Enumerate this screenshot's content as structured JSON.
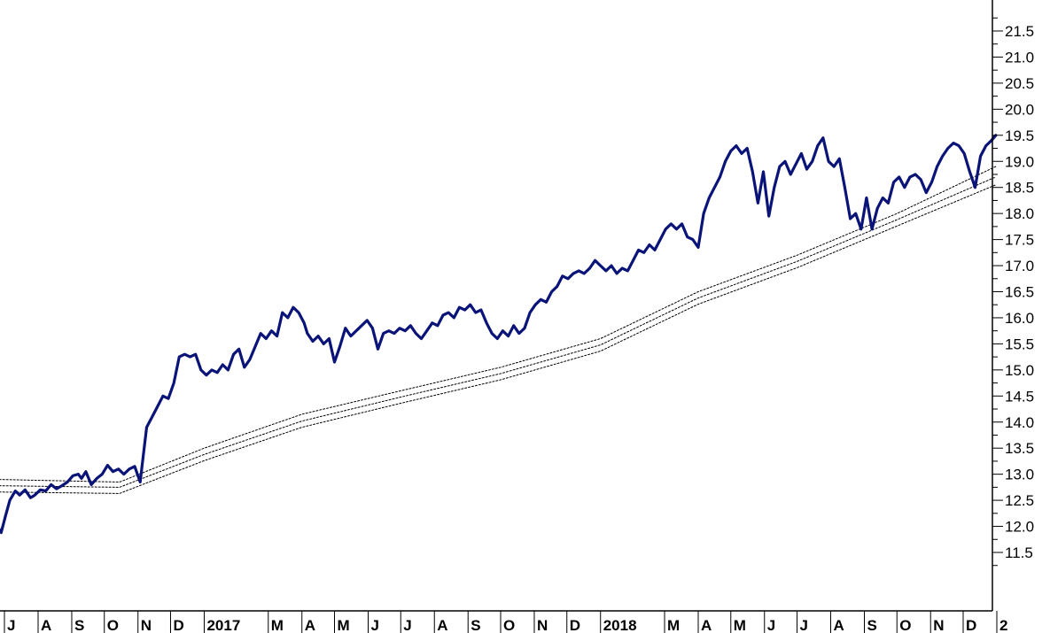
{
  "chart_data": {
    "type": "line",
    "title": "",
    "xlabel": "",
    "ylabel": "",
    "x_range": [
      "2016-07-01",
      "2018-12-31"
    ],
    "ylim": [
      11,
      22
    ],
    "y_ticks": [
      11.5,
      12.0,
      12.5,
      13.0,
      13.5,
      14.0,
      14.5,
      15.0,
      15.5,
      16.0,
      16.5,
      17.0,
      17.5,
      18.0,
      18.5,
      19.0,
      19.5,
      20.0,
      20.5,
      21.0,
      21.5
    ],
    "y_tick_labels": [
      "11.5",
      "12.0",
      "12.5",
      "13.0",
      "13.5",
      "14.0",
      "14.5",
      "15.0",
      "15.5",
      "16.0",
      "16.5",
      "17.0",
      "17.5",
      "18.0",
      "18.5",
      "19.0",
      "19.5",
      "20.0",
      "20.5",
      "21.0",
      "21.5"
    ],
    "x_ticks": [
      {
        "date": "2016-07-01",
        "label": "J"
      },
      {
        "date": "2016-08-01",
        "label": "A"
      },
      {
        "date": "2016-09-01",
        "label": "S"
      },
      {
        "date": "2016-10-01",
        "label": "O"
      },
      {
        "date": "2016-11-01",
        "label": "N"
      },
      {
        "date": "2016-12-01",
        "label": "D"
      },
      {
        "date": "2017-01-01",
        "label": "2017"
      },
      {
        "date": "2017-03-01",
        "label": "M"
      },
      {
        "date": "2017-04-01",
        "label": "A"
      },
      {
        "date": "2017-05-01",
        "label": "M"
      },
      {
        "date": "2017-06-01",
        "label": "J"
      },
      {
        "date": "2017-07-01",
        "label": "J"
      },
      {
        "date": "2017-08-01",
        "label": "A"
      },
      {
        "date": "2017-09-01",
        "label": "S"
      },
      {
        "date": "2017-10-01",
        "label": "O"
      },
      {
        "date": "2017-11-01",
        "label": "N"
      },
      {
        "date": "2017-12-01",
        "label": "D"
      },
      {
        "date": "2018-01-01",
        "label": "2018"
      },
      {
        "date": "2018-03-01",
        "label": "M"
      },
      {
        "date": "2018-04-01",
        "label": "A"
      },
      {
        "date": "2018-05-01",
        "label": "M"
      },
      {
        "date": "2018-06-01",
        "label": "J"
      },
      {
        "date": "2018-07-01",
        "label": "J"
      },
      {
        "date": "2018-08-01",
        "label": "A"
      },
      {
        "date": "2018-09-01",
        "label": "S"
      },
      {
        "date": "2018-10-01",
        "label": "O"
      },
      {
        "date": "2018-11-01",
        "label": "N"
      },
      {
        "date": "2018-12-01",
        "label": "D"
      },
      {
        "date": "2019-01-01",
        "label": "2"
      }
    ],
    "grid": false,
    "series": [
      {
        "style": "solid",
        "color": "#0a1478",
        "points": [
          [
            "2016-06-23",
            12.05
          ],
          [
            "2016-06-28",
            11.88
          ],
          [
            "2016-07-02",
            12.2
          ],
          [
            "2016-07-06",
            12.5
          ],
          [
            "2016-07-11",
            12.68
          ],
          [
            "2016-07-15",
            12.6
          ],
          [
            "2016-07-20",
            12.7
          ],
          [
            "2016-07-25",
            12.55
          ],
          [
            "2016-07-29",
            12.6
          ],
          [
            "2016-08-03",
            12.7
          ],
          [
            "2016-08-08",
            12.68
          ],
          [
            "2016-08-13",
            12.8
          ],
          [
            "2016-08-18",
            12.72
          ],
          [
            "2016-08-23",
            12.78
          ],
          [
            "2016-08-28",
            12.85
          ],
          [
            "2016-09-02",
            12.97
          ],
          [
            "2016-09-07",
            13.0
          ],
          [
            "2016-09-10",
            12.92
          ],
          [
            "2016-09-14",
            13.05
          ],
          [
            "2016-09-19",
            12.8
          ],
          [
            "2016-09-24",
            12.92
          ],
          [
            "2016-09-29",
            13.0
          ],
          [
            "2016-10-04",
            13.17
          ],
          [
            "2016-10-09",
            13.05
          ],
          [
            "2016-10-14",
            13.1
          ],
          [
            "2016-10-19",
            13.0
          ],
          [
            "2016-10-24",
            13.1
          ],
          [
            "2016-10-29",
            13.15
          ],
          [
            "2016-11-03",
            12.85
          ],
          [
            "2016-11-05",
            13.2
          ],
          [
            "2016-11-09",
            13.9
          ],
          [
            "2016-11-14",
            14.1
          ],
          [
            "2016-11-19",
            14.3
          ],
          [
            "2016-11-24",
            14.5
          ],
          [
            "2016-11-29",
            14.45
          ],
          [
            "2016-12-04",
            14.75
          ],
          [
            "2016-12-09",
            15.25
          ],
          [
            "2016-12-14",
            15.3
          ],
          [
            "2016-12-19",
            15.25
          ],
          [
            "2016-12-24",
            15.3
          ],
          [
            "2016-12-29",
            15.0
          ],
          [
            "2017-01-03",
            14.9
          ],
          [
            "2017-01-08",
            15.0
          ],
          [
            "2017-01-13",
            14.95
          ],
          [
            "2017-01-18",
            15.1
          ],
          [
            "2017-01-23",
            15.0
          ],
          [
            "2017-01-28",
            15.3
          ],
          [
            "2017-02-02",
            15.4
          ],
          [
            "2017-02-07",
            15.05
          ],
          [
            "2017-02-12",
            15.2
          ],
          [
            "2017-02-17",
            15.45
          ],
          [
            "2017-02-22",
            15.7
          ],
          [
            "2017-02-27",
            15.6
          ],
          [
            "2017-03-04",
            15.75
          ],
          [
            "2017-03-09",
            15.65
          ],
          [
            "2017-03-14",
            16.1
          ],
          [
            "2017-03-19",
            16.0
          ],
          [
            "2017-03-24",
            16.2
          ],
          [
            "2017-03-29",
            16.1
          ],
          [
            "2017-04-03",
            15.9
          ],
          [
            "2017-04-06",
            15.7
          ],
          [
            "2017-04-11",
            15.55
          ],
          [
            "2017-04-16",
            15.65
          ],
          [
            "2017-04-21",
            15.5
          ],
          [
            "2017-04-26",
            15.6
          ],
          [
            "2017-05-01",
            15.15
          ],
          [
            "2017-05-06",
            15.45
          ],
          [
            "2017-05-11",
            15.8
          ],
          [
            "2017-05-16",
            15.65
          ],
          [
            "2017-05-21",
            15.75
          ],
          [
            "2017-05-26",
            15.85
          ],
          [
            "2017-05-31",
            15.95
          ],
          [
            "2017-06-05",
            15.8
          ],
          [
            "2017-06-10",
            15.4
          ],
          [
            "2017-06-15",
            15.7
          ],
          [
            "2017-06-20",
            15.75
          ],
          [
            "2017-06-25",
            15.7
          ],
          [
            "2017-06-30",
            15.8
          ],
          [
            "2017-07-05",
            15.75
          ],
          [
            "2017-07-10",
            15.85
          ],
          [
            "2017-07-15",
            15.7
          ],
          [
            "2017-07-20",
            15.6
          ],
          [
            "2017-07-25",
            15.75
          ],
          [
            "2017-07-30",
            15.9
          ],
          [
            "2017-08-04",
            15.85
          ],
          [
            "2017-08-09",
            16.05
          ],
          [
            "2017-08-14",
            16.1
          ],
          [
            "2017-08-19",
            16.0
          ],
          [
            "2017-08-24",
            16.2
          ],
          [
            "2017-08-29",
            16.15
          ],
          [
            "2017-09-03",
            16.25
          ],
          [
            "2017-09-08",
            16.1
          ],
          [
            "2017-09-13",
            16.15
          ],
          [
            "2017-09-18",
            15.9
          ],
          [
            "2017-09-23",
            15.7
          ],
          [
            "2017-09-28",
            15.6
          ],
          [
            "2017-10-03",
            15.75
          ],
          [
            "2017-10-08",
            15.65
          ],
          [
            "2017-10-13",
            15.85
          ],
          [
            "2017-10-18",
            15.7
          ],
          [
            "2017-10-23",
            15.8
          ],
          [
            "2017-10-28",
            16.1
          ],
          [
            "2017-11-02",
            16.25
          ],
          [
            "2017-11-07",
            16.35
          ],
          [
            "2017-11-12",
            16.3
          ],
          [
            "2017-11-17",
            16.5
          ],
          [
            "2017-11-22",
            16.6
          ],
          [
            "2017-11-27",
            16.8
          ],
          [
            "2017-12-02",
            16.75
          ],
          [
            "2017-12-07",
            16.85
          ],
          [
            "2017-12-12",
            16.9
          ],
          [
            "2017-12-17",
            16.85
          ],
          [
            "2017-12-22",
            16.95
          ],
          [
            "2017-12-27",
            17.1
          ],
          [
            "2018-01-01",
            17.0
          ],
          [
            "2018-01-06",
            16.9
          ],
          [
            "2018-01-11",
            17.0
          ],
          [
            "2018-01-16",
            16.85
          ],
          [
            "2018-01-21",
            16.95
          ],
          [
            "2018-01-26",
            16.9
          ],
          [
            "2018-01-31",
            17.1
          ],
          [
            "2018-02-05",
            17.3
          ],
          [
            "2018-02-10",
            17.25
          ],
          [
            "2018-02-15",
            17.4
          ],
          [
            "2018-02-20",
            17.3
          ],
          [
            "2018-02-25",
            17.5
          ],
          [
            "2018-03-02",
            17.7
          ],
          [
            "2018-03-07",
            17.8
          ],
          [
            "2018-03-12",
            17.7
          ],
          [
            "2018-03-17",
            17.8
          ],
          [
            "2018-03-22",
            17.55
          ],
          [
            "2018-03-27",
            17.5
          ],
          [
            "2018-04-01",
            17.35
          ],
          [
            "2018-04-06",
            18.0
          ],
          [
            "2018-04-11",
            18.3
          ],
          [
            "2018-04-16",
            18.5
          ],
          [
            "2018-04-21",
            18.7
          ],
          [
            "2018-04-26",
            19.0
          ],
          [
            "2018-05-01",
            19.2
          ],
          [
            "2018-05-06",
            19.3
          ],
          [
            "2018-05-11",
            19.15
          ],
          [
            "2018-05-16",
            19.25
          ],
          [
            "2018-05-21",
            18.8
          ],
          [
            "2018-05-26",
            18.2
          ],
          [
            "2018-05-31",
            18.8
          ],
          [
            "2018-06-05",
            17.95
          ],
          [
            "2018-06-10",
            18.5
          ],
          [
            "2018-06-15",
            18.9
          ],
          [
            "2018-06-20",
            19.0
          ],
          [
            "2018-06-25",
            18.75
          ],
          [
            "2018-06-30",
            18.95
          ],
          [
            "2018-07-05",
            19.15
          ],
          [
            "2018-07-10",
            18.85
          ],
          [
            "2018-07-15",
            19.0
          ],
          [
            "2018-07-20",
            19.3
          ],
          [
            "2018-07-25",
            19.45
          ],
          [
            "2018-07-30",
            19.0
          ],
          [
            "2018-08-04",
            18.9
          ],
          [
            "2018-08-09",
            19.05
          ],
          [
            "2018-08-14",
            18.5
          ],
          [
            "2018-08-19",
            17.9
          ],
          [
            "2018-08-24",
            18.0
          ],
          [
            "2018-08-29",
            17.7
          ],
          [
            "2018-09-03",
            18.3
          ],
          [
            "2018-09-08",
            17.7
          ],
          [
            "2018-09-13",
            18.1
          ],
          [
            "2018-09-18",
            18.3
          ],
          [
            "2018-09-23",
            18.2
          ],
          [
            "2018-09-28",
            18.6
          ],
          [
            "2018-10-03",
            18.7
          ],
          [
            "2018-10-08",
            18.5
          ],
          [
            "2018-10-13",
            18.7
          ],
          [
            "2018-10-18",
            18.75
          ],
          [
            "2018-10-23",
            18.65
          ],
          [
            "2018-10-28",
            18.4
          ],
          [
            "2018-11-02",
            18.6
          ],
          [
            "2018-11-07",
            18.9
          ],
          [
            "2018-11-12",
            19.1
          ],
          [
            "2018-11-17",
            19.25
          ],
          [
            "2018-11-22",
            19.35
          ],
          [
            "2018-11-27",
            19.3
          ],
          [
            "2018-12-02",
            19.15
          ],
          [
            "2018-12-07",
            18.8
          ],
          [
            "2018-12-12",
            18.5
          ],
          [
            "2018-12-17",
            19.1
          ],
          [
            "2018-12-22",
            19.3
          ],
          [
            "2018-12-27",
            19.4
          ],
          [
            "2018-12-31",
            19.5
          ]
        ]
      },
      {
        "style": "dotted",
        "color": "#000000",
        "points": [
          [
            "2016-06-23",
            12.9
          ],
          [
            "2016-10-15",
            12.85
          ],
          [
            "2017-01-01",
            13.5
          ],
          [
            "2017-04-01",
            14.15
          ],
          [
            "2017-07-01",
            14.6
          ],
          [
            "2017-10-01",
            15.05
          ],
          [
            "2018-01-01",
            15.6
          ],
          [
            "2018-04-01",
            16.5
          ],
          [
            "2018-07-01",
            17.2
          ],
          [
            "2018-10-01",
            18.0
          ],
          [
            "2018-12-31",
            18.9
          ]
        ]
      },
      {
        "style": "dotted",
        "color": "#000000",
        "points": [
          [
            "2016-06-23",
            12.78
          ],
          [
            "2016-10-15",
            12.75
          ],
          [
            "2017-01-01",
            13.38
          ],
          [
            "2017-04-01",
            14.02
          ],
          [
            "2017-07-01",
            14.48
          ],
          [
            "2017-10-01",
            14.93
          ],
          [
            "2018-01-01",
            15.48
          ],
          [
            "2018-04-01",
            16.38
          ],
          [
            "2018-07-01",
            17.08
          ],
          [
            "2018-10-01",
            17.88
          ],
          [
            "2018-12-31",
            18.7
          ]
        ]
      },
      {
        "style": "dotted",
        "color": "#000000",
        "points": [
          [
            "2016-06-23",
            12.66
          ],
          [
            "2016-10-15",
            12.63
          ],
          [
            "2017-01-01",
            13.26
          ],
          [
            "2017-04-01",
            13.9
          ],
          [
            "2017-07-01",
            14.36
          ],
          [
            "2017-10-01",
            14.81
          ],
          [
            "2018-01-01",
            15.36
          ],
          [
            "2018-04-01",
            16.26
          ],
          [
            "2018-07-01",
            16.96
          ],
          [
            "2018-10-01",
            17.76
          ],
          [
            "2018-12-31",
            18.55
          ]
        ]
      }
    ]
  }
}
